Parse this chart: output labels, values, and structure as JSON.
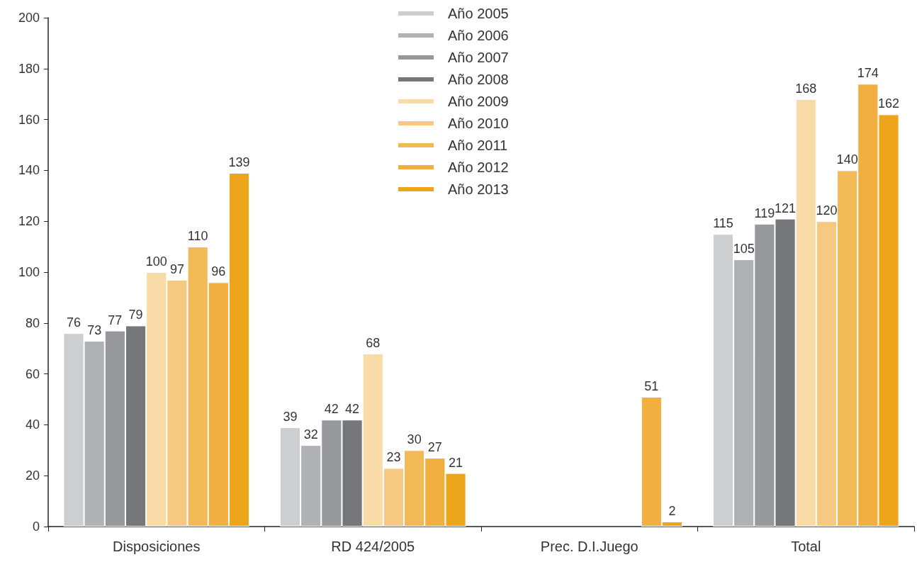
{
  "chart_data": {
    "type": "bar",
    "categories": [
      "Disposiciones",
      "RD 424/2005",
      "Prec. D.I.Juego",
      "Total"
    ],
    "series": [
      {
        "name": "Año 2005",
        "color": "#cdced0",
        "values": [
          76,
          39,
          null,
          115
        ]
      },
      {
        "name": "Año 2006",
        "color": "#b0b1b5",
        "values": [
          73,
          32,
          null,
          105
        ]
      },
      {
        "name": "Año 2007",
        "color": "#97989c",
        "values": [
          77,
          42,
          null,
          119
        ]
      },
      {
        "name": "Año 2008",
        "color": "#76777b",
        "values": [
          79,
          42,
          null,
          121
        ]
      },
      {
        "name": "Año 2009",
        "color": "#f9dba8",
        "values": [
          100,
          68,
          null,
          168
        ]
      },
      {
        "name": "Año 2010",
        "color": "#f5c982",
        "values": [
          97,
          23,
          null,
          120
        ]
      },
      {
        "name": "Año 2011",
        "color": "#f2b957",
        "values": [
          110,
          30,
          null,
          140
        ]
      },
      {
        "name": "Año 2012",
        "color": "#f0af40",
        "values": [
          96,
          27,
          51,
          174
        ]
      },
      {
        "name": "Año 2013",
        "color": "#eda51c",
        "values": [
          139,
          21,
          2,
          162
        ]
      }
    ],
    "ylim": [
      0,
      200
    ],
    "yticks": [
      0,
      20,
      40,
      60,
      80,
      100,
      120,
      140,
      160,
      180,
      200
    ],
    "legend": "top",
    "data_labels": true
  }
}
